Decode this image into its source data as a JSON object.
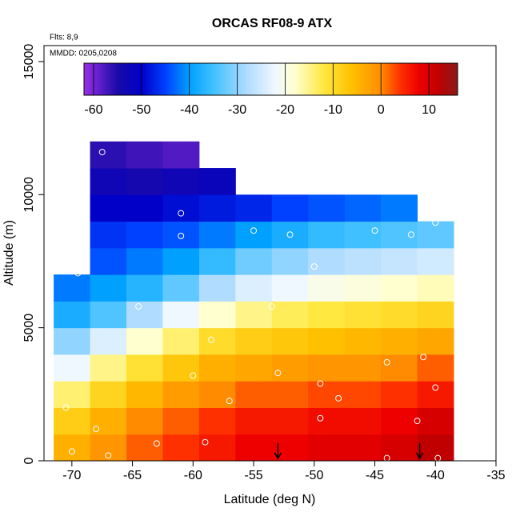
{
  "chart_data": {
    "type": "heatmap",
    "title": "ORCAS RF08-9 ATX",
    "flights_label": "Flts: 8,9",
    "dates_label": "MMDD: 0205,0208",
    "xlabel": "Latitude (deg N)",
    "ylabel": "Altitude (m)",
    "xlim": [
      -72.3,
      -35
    ],
    "xticks": [
      -70,
      -65,
      -60,
      -55,
      -50,
      -45,
      -40,
      -35
    ],
    "ylim": [
      0,
      15600
    ],
    "yticks": [
      0,
      5000,
      10000,
      15000
    ],
    "x_edges": [
      -71.5,
      -68.5,
      -65.5,
      -62.5,
      -59.5,
      -56.5,
      -53.5,
      -50.5,
      -47.5,
      -44.5,
      -41.5,
      -38.5
    ],
    "y_edges": [
      0,
      1000,
      2000,
      3000,
      4000,
      5000,
      6000,
      7000,
      8000,
      9000,
      10000,
      11000,
      12000
    ],
    "values": [
      [
        -4,
        -1,
        2,
        4,
        6,
        8,
        8,
        9,
        9,
        10,
        12
      ],
      [
        -8,
        -4,
        0,
        2,
        4,
        6,
        6,
        7,
        7,
        8,
        10
      ],
      [
        -14,
        -9,
        -5,
        -2,
        0,
        2,
        2,
        3,
        3,
        4,
        6
      ],
      [
        -22,
        -15,
        -11,
        -7,
        -4,
        -3,
        -2,
        -1,
        -1,
        0,
        2
      ],
      [
        -30,
        -24,
        -18,
        -14,
        -10,
        -8,
        -7,
        -6,
        -5,
        -4,
        -3
      ],
      [
        -38,
        -34,
        -28,
        -22,
        -18,
        -15,
        -13,
        -12,
        -11,
        -10,
        -9
      ],
      [
        -42,
        -40,
        -37,
        -33,
        -28,
        -24,
        -22,
        -20,
        -19,
        -18,
        -17
      ],
      [
        null,
        -44,
        -42,
        -40,
        -36,
        -32,
        -30,
        -28,
        -27,
        -26,
        -25
      ],
      [
        null,
        -46,
        -45,
        -44,
        -42,
        -40,
        -38,
        -36,
        -35,
        -34,
        -33
      ],
      [
        null,
        -50,
        -50,
        -49,
        -48,
        -47,
        -45,
        -44,
        -43,
        -42,
        null
      ],
      [
        null,
        -53,
        -54,
        -53,
        -52,
        null,
        null,
        null,
        null,
        null,
        null
      ],
      [
        null,
        -56,
        -57,
        -58,
        null,
        null,
        null,
        null,
        null,
        null,
        null
      ]
    ],
    "points": {
      "x": [
        -67.5,
        -61,
        -61,
        -55,
        -52,
        -45,
        -42,
        -40,
        -69.5,
        -50,
        -64.5,
        -53.5,
        -58.5,
        -60,
        -53,
        -57,
        -49.5,
        -48,
        -44,
        -41,
        -40,
        -41.5,
        -49.5,
        -68,
        -70.5,
        -63,
        -59,
        -70,
        -67,
        -44,
        -39.8
      ],
      "y": [
        11600,
        9300,
        8450,
        8650,
        8500,
        8650,
        8500,
        8950,
        7050,
        7300,
        5800,
        5800,
        4550,
        3200,
        3300,
        2250,
        2900,
        2350,
        3700,
        3900,
        2750,
        1500,
        1600,
        1200,
        2000,
        650,
        700,
        350,
        200,
        100,
        100
      ]
    },
    "arrows_x": [
      -53,
      -41.3
    ],
    "colorbar": {
      "clim": [
        -62,
        16
      ],
      "ticks": [
        -60,
        -50,
        -40,
        -30,
        -20,
        -10,
        0,
        10
      ],
      "stops": [
        [
          -62,
          "#9a30e8"
        ],
        [
          -55,
          "#1a0aa8"
        ],
        [
          -50,
          "#0000c8"
        ],
        [
          -45,
          "#0040ff"
        ],
        [
          -40,
          "#00a0ff"
        ],
        [
          -35,
          "#40c0ff"
        ],
        [
          -28,
          "#b0dcff"
        ],
        [
          -22,
          "#f0f8ff"
        ],
        [
          -18,
          "#ffffd0"
        ],
        [
          -12,
          "#ffe840"
        ],
        [
          -6,
          "#ffc000"
        ],
        [
          0,
          "#ff8c00"
        ],
        [
          4,
          "#ff3000"
        ],
        [
          8,
          "#ee0000"
        ],
        [
          12,
          "#c00000"
        ],
        [
          16,
          "#8b1a1a"
        ]
      ]
    }
  }
}
